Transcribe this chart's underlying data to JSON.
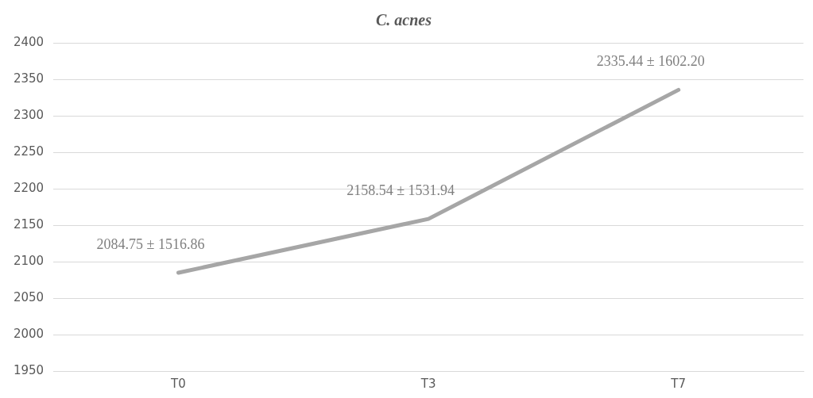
{
  "chart_data": {
    "type": "line",
    "title": "C. acnes",
    "categories": [
      "T0",
      "T3",
      "T7"
    ],
    "series": [
      {
        "color": "#a6a6a6",
        "values": [
          2084.75,
          2158.54,
          2335.44
        ],
        "value_labels": [
          "2084.75 ± 1516.86",
          "2158.54 ± 1531.94",
          "2335.44 ± 1602.20"
        ]
      }
    ],
    "ylim": [
      1950,
      2400
    ],
    "yticks": [
      1950,
      2000,
      2050,
      2100,
      2150,
      2200,
      2250,
      2300,
      2350,
      2400
    ],
    "grid": "y",
    "legend": false,
    "marker": "none",
    "line_style": "solid"
  }
}
